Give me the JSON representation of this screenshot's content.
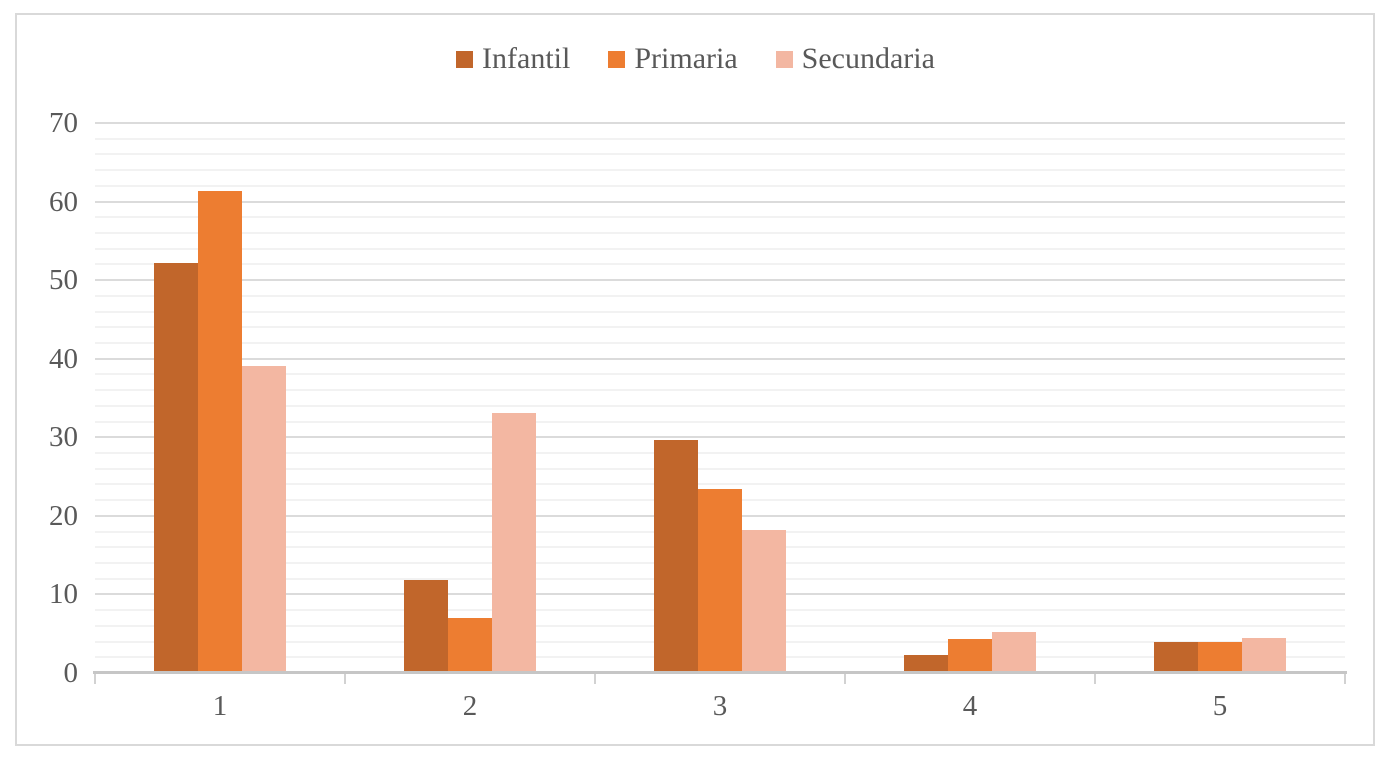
{
  "chart_data": {
    "type": "bar",
    "categories": [
      "1",
      "2",
      "3",
      "4",
      "5"
    ],
    "series": [
      {
        "name": "Infantil",
        "color": "#C1662B",
        "values": [
          52.2,
          11.8,
          29.7,
          2.3,
          4.0
        ]
      },
      {
        "name": "Primaria",
        "color": "#ED7D31",
        "values": [
          61.4,
          7.0,
          23.4,
          4.3,
          3.9
        ]
      },
      {
        "name": "Secundaria",
        "color": "#F3B7A2",
        "values": [
          39.1,
          33.1,
          18.2,
          5.2,
          4.5
        ]
      }
    ],
    "title": "",
    "xlabel": "",
    "ylabel": "",
    "ylim": [
      0,
      70
    ],
    "y_major_step": 10,
    "y_minor_step": 2,
    "y_tick_labels": [
      "0",
      "10",
      "20",
      "30",
      "40",
      "50",
      "60",
      "70"
    ],
    "grid": true,
    "legend_position": "top-center"
  },
  "legend": {
    "items": [
      "Infantil",
      "Primaria",
      "Secundaria"
    ]
  },
  "colors": {
    "text": "#595959",
    "major_grid": "#DBDBDB",
    "minor_grid": "#F2F2F2",
    "axis_line": "#C6C6C6",
    "tick": "#D2D2D2",
    "frame_border": "#D9D9D9",
    "background": "#FFFFFF"
  }
}
